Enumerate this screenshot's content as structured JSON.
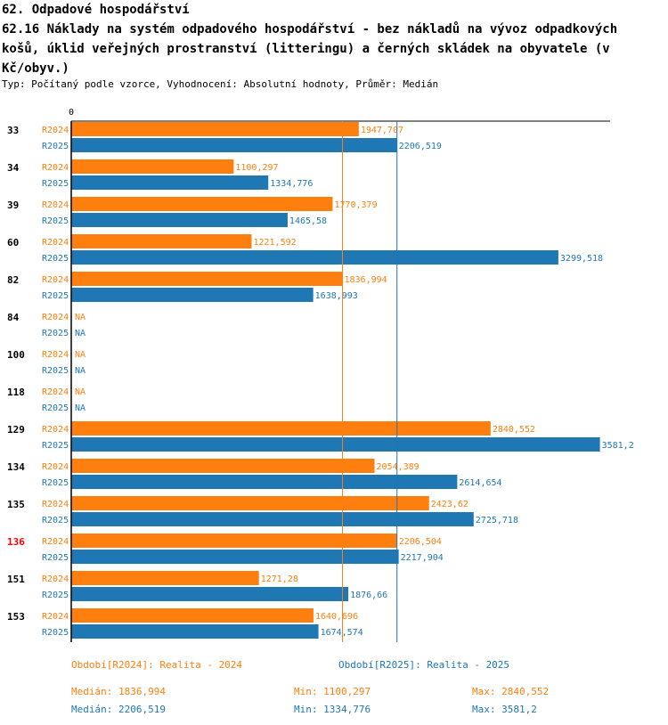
{
  "header": {
    "section": "62. Odpadové hospodářství",
    "title": "62.16 Náklady na systém odpadového hospodářství - bez nákladů na vývoz odpadkových košů, úklid veřejných prostranství (litteringu) a černých skládek na obyvatele (v Kč/obyv.)",
    "subtitle": "Typ: Počítaný podle vzorce, Vyhodnocení: Absolutní hodnoty, Průměr: Medián"
  },
  "colors": {
    "r2024": "#ff7f0e",
    "r2025": "#1f77b4",
    "highlight": "#ff0000"
  },
  "chart_data": {
    "type": "bar",
    "orientation": "horizontal",
    "axis_zero_label": "0",
    "xlim": [
      0,
      3650
    ],
    "highlight_category": "136",
    "categories": [
      "33",
      "34",
      "39",
      "60",
      "82",
      "84",
      "100",
      "118",
      "129",
      "134",
      "135",
      "136",
      "151",
      "153"
    ],
    "series": [
      {
        "name": "R2024",
        "values": [
          1947.707,
          1100.297,
          1770.379,
          1221.592,
          1836.994,
          null,
          null,
          null,
          2840.552,
          2054.389,
          2423.62,
          2206.504,
          1271.28,
          1640.696
        ],
        "labels": [
          "1947,707",
          "1100,297",
          "1770,379",
          "1221,592",
          "1836,994",
          "NA",
          "NA",
          "NA",
          "2840,552",
          "2054,389",
          "2423,62",
          "2206,504",
          "1271,28",
          "1640,696"
        ]
      },
      {
        "name": "R2025",
        "values": [
          2206.519,
          1334.776,
          1465.58,
          3299.518,
          1638.993,
          null,
          null,
          null,
          3581.2,
          2614.654,
          2725.718,
          2217.904,
          1876.66,
          1674.574
        ],
        "labels": [
          "2206,519",
          "1334,776",
          "1465,58",
          "3299,518",
          "1638,993",
          "NA",
          "NA",
          "NA",
          "3581,2",
          "2614,654",
          "2725,718",
          "2217,904",
          "1876,66",
          "1674,574"
        ]
      }
    ],
    "median_lines": [
      1836.994,
      2206.519
    ]
  },
  "legend": {
    "r2024": "Období[R2024]: Realita - 2024",
    "r2025": "Období[R2025]: Realita - 2025"
  },
  "stats": {
    "r2024": {
      "median": "Medián: 1836,994",
      "min": "Min: 1100,297",
      "max": "Max: 2840,552"
    },
    "r2025": {
      "median": "Medián: 2206,519",
      "min": "Min: 1334,776",
      "max": "Max: 3581,2"
    }
  }
}
